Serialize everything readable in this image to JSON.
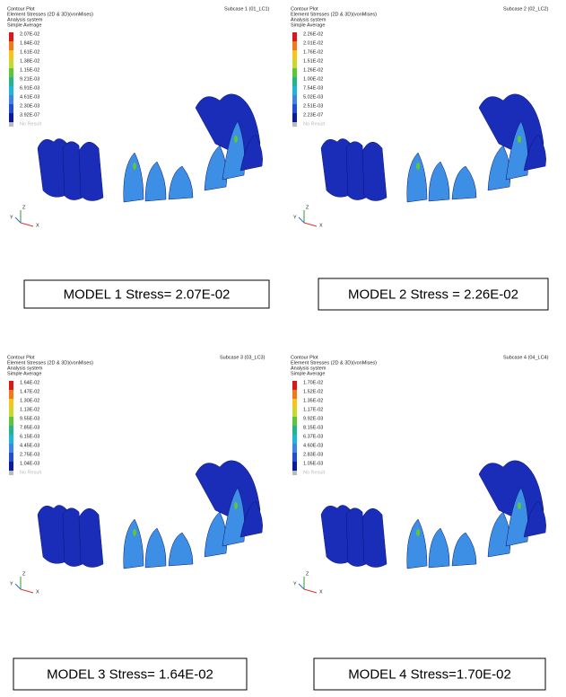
{
  "panels": [
    {
      "title": "Contour Plot",
      "result": "Element Stresses (2D & 3D)(vonMises)",
      "system": "Analysis system",
      "averaging": "Simple Average",
      "subcase": "Subcase 1 (01_LC1)",
      "legend": [
        "2.07E-02",
        "1.84E-02",
        "1.61E-02",
        "1.38E-02",
        "1.15E-02",
        "9.21E-03",
        "6.91E-03",
        "4.61E-03",
        "2.30E-03",
        "3.92E-07"
      ],
      "no_result": "No Result",
      "axes": {
        "z": "Z",
        "y": "Y",
        "x": "X"
      },
      "caption": "MODEL 1 Stress= 2.07E-02"
    },
    {
      "title": "Contour Plot",
      "result": "Element Stresses (2D & 3D)(vonMises)",
      "system": "Analysis system",
      "averaging": "Simple Average",
      "subcase": "Subcase 2 (02_LC2)",
      "legend": [
        "2.26E-02",
        "2.01E-02",
        "1.76E-02",
        "1.51E-02",
        "1.26E-02",
        "1.00E-02",
        "7.54E-03",
        "5.02E-03",
        "2.51E-03",
        "2.23E-07"
      ],
      "no_result": "No Result",
      "axes": {
        "z": "Z",
        "y": "Y",
        "x": "X"
      },
      "caption": "MODEL 2 Stress = 2.26E-02"
    },
    {
      "title": "Contour Plot",
      "result": "Element Stresses (2D & 3D)(vonMises)",
      "system": "Analysis system",
      "averaging": "Simple Average",
      "subcase": "Subcase 3 (03_LC3)",
      "legend": [
        "1.64E-02",
        "1.47E-02",
        "1.30E-02",
        "1.13E-02",
        "9.55E-03",
        "7.85E-03",
        "6.15E-03",
        "4.45E-03",
        "2.75E-03",
        "1.04E-03"
      ],
      "no_result": "No Result",
      "axes": {
        "z": "Z",
        "y": "Y",
        "x": "X"
      },
      "caption": "MODEL 3 Stress= 1.64E-02"
    },
    {
      "title": "Contour Plot",
      "result": "Element Stresses (2D & 3D)(vonMises)",
      "system": "Analysis system",
      "averaging": "Simple Average",
      "subcase": "Subcase 4 (04_LC4)",
      "legend": [
        "1.70E-02",
        "1.52E-02",
        "1.35E-02",
        "1.17E-02",
        "9.92E-03",
        "8.15E-03",
        "6.37E-03",
        "4.60E-03",
        "2.83E-03",
        "1.05E-03"
      ],
      "no_result": "No Result",
      "axes": {
        "z": "Z",
        "y": "Y",
        "x": "X"
      },
      "caption": "MODEL 4 Stress=1.70E-02"
    }
  ]
}
